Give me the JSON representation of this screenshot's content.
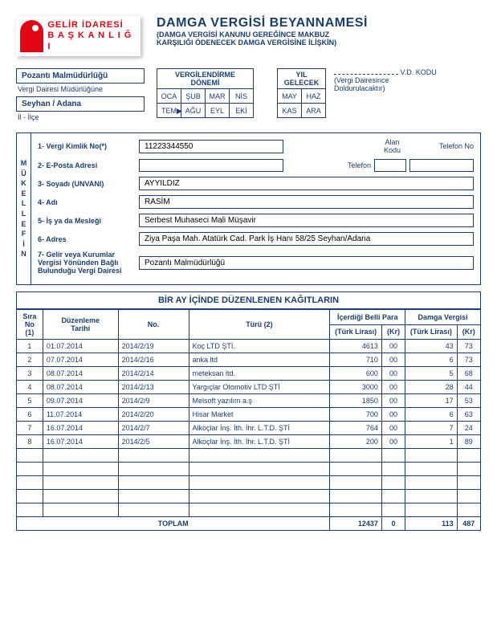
{
  "logo": {
    "line1": "GELİR İDARESİ",
    "line2": "B A Ş K A N L I Ğ I"
  },
  "title": {
    "main": "DAMGA VERGİSİ BEYANNAMESİ",
    "sub1": "(DAMGA VERGİSİ KANUNU GEREĞİNCE MAKBUZ",
    "sub2": "KARŞILIĞI ÖDENECEK DAMGA VERGİSİNE İLİŞKİN)"
  },
  "office": {
    "name": "Pozantı Malmüdürlüğü",
    "sub": "Vergi Dairesi Müdürlüğüne",
    "location": "Seyhan / Adana",
    "location_sub": "İl - İlçe"
  },
  "period": {
    "header1": "VERGİLENDİRME DÖNEMİ",
    "header2": "YIL GELECEK",
    "months": [
      "OCA",
      "ŞUB",
      "MAR",
      "NİS",
      "MAY",
      "HAZ",
      "TEM",
      "AĞU",
      "EYL",
      "EKİ",
      "KAS",
      "ARA"
    ],
    "arrow": "▶"
  },
  "vd": {
    "label": "V.D. KODU",
    "note": "(Vergi Dairesince\nDoldurulacaktır)"
  },
  "mukellef": {
    "vert": "MÜKELLEFİN",
    "labels": {
      "kimlik": "1- Vergi Kimlik No(*)",
      "eposta": "2- E-Posta Adresi",
      "soyad": "3- Soyadı (UNVANI)",
      "ad": "4- Adı",
      "meslek": "5- İş ya da Mesleği",
      "adres": "6- Adres",
      "vergi_d": "7- Gelir veya Kurumlar\nVergisi Yönünden Bağlı\nBulunduğu Vergi Dairesi"
    },
    "values": {
      "kimlik": "11223344550",
      "eposta": "",
      "soyad": "AYYILDIZ",
      "ad": "RASİM",
      "meslek": "Serbest Muhaseci Mali Müşavir",
      "adres": "Ziya Paşa Mah. Atatürk Cad. Park İş Hanı 58/25 Seyhan/Adana",
      "vergi_d": "Pozantı Malmüdürlüğü"
    },
    "phone": {
      "alan": "Alan\nKodu",
      "telefon_no": "Telefon No",
      "telefon": "Telefon"
    }
  },
  "section_title": "BİR AY İÇİNDE DÜZENLENEN KAĞITLARIN",
  "columns": {
    "sira": "Sıra\nNo\n(1)",
    "tarih": "Düzenleme\nTarihi",
    "no": "No.",
    "turu": "Türü (2)",
    "para": "İçerdiği Belli Para",
    "damga": "Damga Vergisi",
    "tl": "(Türk Lirası)",
    "kr": "(Kr)"
  },
  "rows": [
    {
      "n": "1",
      "t": "01.07.2014",
      "no": "2014/2/19",
      "turu": "Koç LTD ŞTİ.",
      "ptl": "4613",
      "pkr": "00",
      "dtl": "43",
      "dkr": "73"
    },
    {
      "n": "2",
      "t": "07.07.2014",
      "no": "2014/2/16",
      "turu": "anka ltd",
      "ptl": "710",
      "pkr": "00",
      "dtl": "6",
      "dkr": "73"
    },
    {
      "n": "3",
      "t": "08.07.2014",
      "no": "2014/2/14",
      "turu": "meteksan ltd.",
      "ptl": "600",
      "pkr": "00",
      "dtl": "5",
      "dkr": "68"
    },
    {
      "n": "4",
      "t": "08.07.2014",
      "no": "2014/2/13",
      "turu": "Yargıçlar Otomotiv LTD ŞTİ",
      "ptl": "3000",
      "pkr": "00",
      "dtl": "28",
      "dkr": "44"
    },
    {
      "n": "5",
      "t": "09.07.2014",
      "no": "2014/2/9",
      "turu": "Melsoft yazılım a.ş",
      "ptl": "1850",
      "pkr": "00",
      "dtl": "17",
      "dkr": "53"
    },
    {
      "n": "6",
      "t": "11.07.2014",
      "no": "2014/2/20",
      "turu": "Hisar Market",
      "ptl": "700",
      "pkr": "00",
      "dtl": "6",
      "dkr": "63"
    },
    {
      "n": "7",
      "t": "16.07.2014",
      "no": "2014/2/7",
      "turu": "Alkoçlar İnş. İth. İhr. L.T.D. ŞTİ",
      "ptl": "764",
      "pkr": "00",
      "dtl": "7",
      "dkr": "24"
    },
    {
      "n": "8",
      "t": "16.07.2014",
      "no": "2014/2/5",
      "turu": "Alkoçlar İnş. İth. İhr. L.T.D. ŞTİ",
      "ptl": "200",
      "pkr": "00",
      "dtl": "1",
      "dkr": "89"
    }
  ],
  "total": {
    "label": "TOPLAM",
    "ptl": "12437",
    "pkr": "0",
    "dtl": "113",
    "dkr": "487"
  }
}
